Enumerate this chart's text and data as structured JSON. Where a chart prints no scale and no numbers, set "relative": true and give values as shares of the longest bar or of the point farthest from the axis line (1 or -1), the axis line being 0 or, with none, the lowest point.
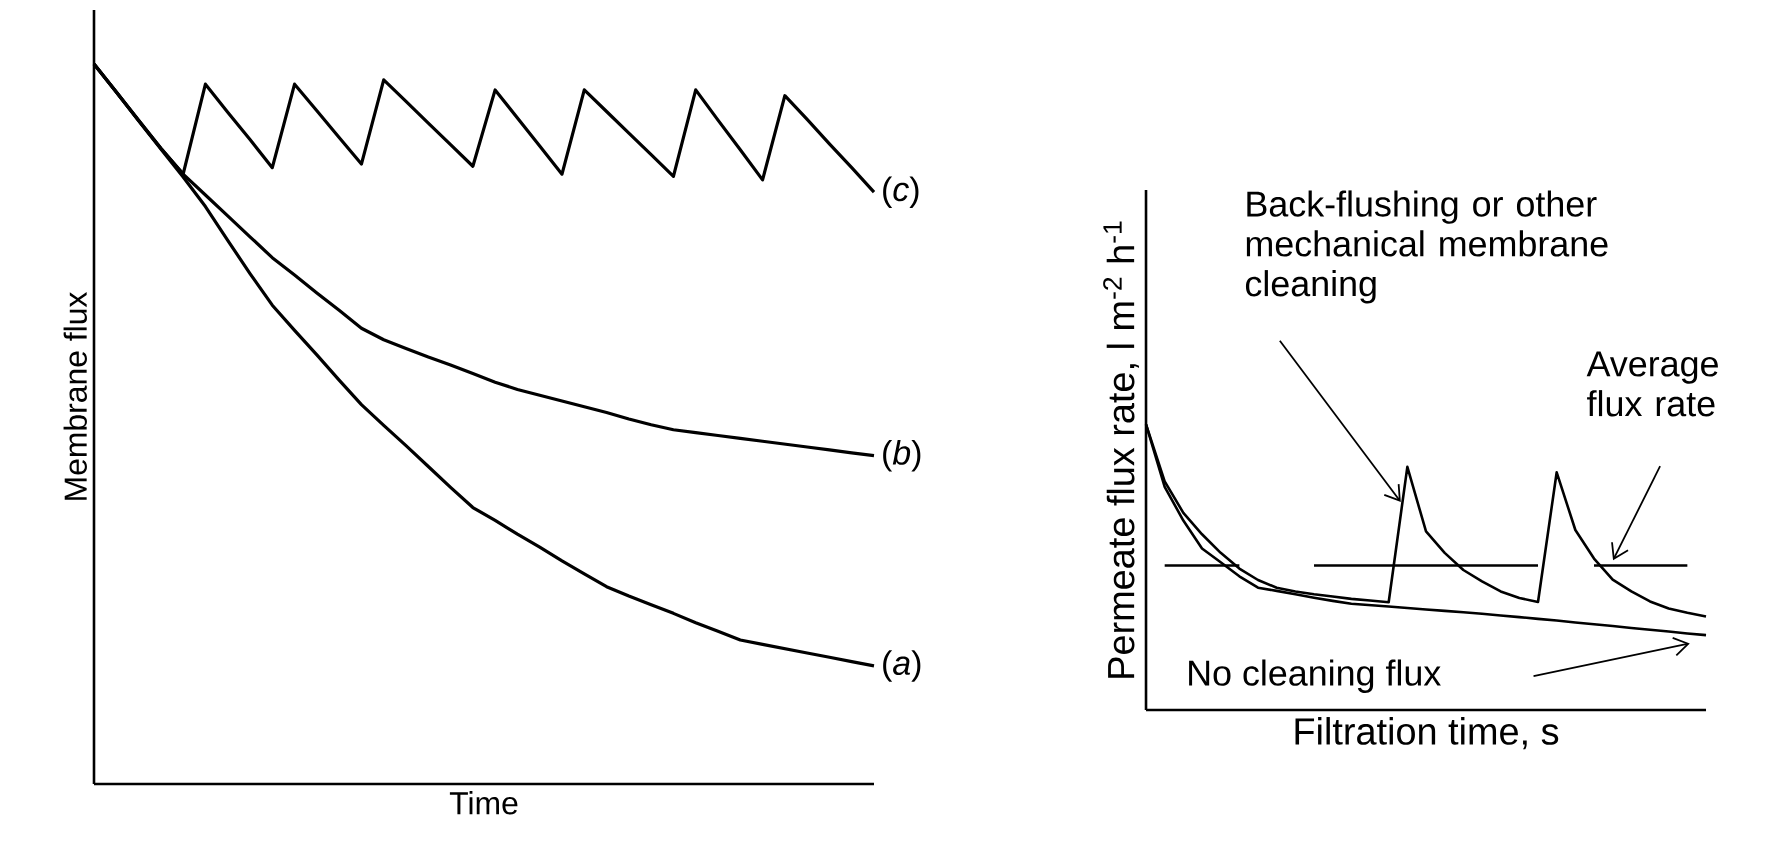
{
  "chart_data": [
    {
      "type": "line",
      "relative": true,
      "xlabel": "Time",
      "ylabel": "Membrane flux",
      "marker": "none",
      "line_style": "solid",
      "categories": [
        null,
        null,
        null,
        null,
        null,
        null,
        null,
        null,
        null,
        null,
        null,
        null,
        null,
        null,
        null,
        null,
        null,
        null,
        null,
        null,
        null,
        null,
        null,
        null,
        null,
        null,
        null,
        null,
        null,
        null,
        null,
        null,
        null,
        null,
        null,
        null
      ],
      "series": [
        {
          "name": "(*a*)",
          "color": "#000000",
          "values": [
            1,
            0.961,
            0.921,
            0.882,
            0.843,
            0.802,
            0.755,
            0.709,
            0.665,
            0.63,
            0.596,
            0.561,
            0.527,
            0.498,
            0.47,
            0.441,
            0.412,
            0.384,
            0.366,
            0.347,
            0.329,
            0.31,
            0.292,
            0.274,
            0.261,
            0.249,
            0.237,
            0.224,
            0.212,
            0.2,
            0.194,
            0.188,
            0.182,
            0.176,
            0.17,
            0.164
          ]
        },
        {
          "name": "(*b*)",
          "color": "#000000",
          "values": [
            1,
            0.961,
            0.922,
            0.883,
            0.847,
            0.818,
            0.789,
            0.76,
            0.731,
            0.707,
            0.682,
            0.658,
            0.633,
            0.617,
            0.605,
            0.593,
            0.582,
            0.57,
            0.558,
            0.548,
            0.54,
            0.532,
            0.524,
            0.516,
            0.507,
            0.499,
            0.492,
            0.488,
            0.484,
            0.48,
            0.476,
            0.472,
            0.468,
            0.464,
            0.46,
            0.456
          ]
        },
        {
          "name": "(*c*)",
          "color": "#000000",
          "values": [
            1,
            0.961,
            0.922,
            0.883,
            0.847,
            0.972,
            0.933,
            0.895,
            0.856,
            0.972,
            0.935,
            0.898,
            0.861,
            0.978,
            0.948,
            0.918,
            0.888,
            0.858,
            0.964,
            0.925,
            0.886,
            0.847,
            0.964,
            0.934,
            0.904,
            0.874,
            0.844,
            0.964,
            0.922,
            0.881,
            0.839,
            0.956,
            0.923,
            0.889,
            0.856,
            0.822
          ]
        }
      ]
    },
    {
      "type": "line",
      "relative": true,
      "xlabel": "Filtration time, s",
      "ylabel": "Permeate flux rate, l m$^{-2}$ h$^{-1}$",
      "marker": "none",
      "line_style": "solid",
      "categories": [
        null,
        null,
        null,
        null,
        null,
        null,
        null,
        null,
        null,
        null,
        null,
        null,
        null,
        null,
        null,
        null,
        null,
        null,
        null,
        null,
        null,
        null,
        null,
        null,
        null,
        null,
        null,
        null,
        null,
        null,
        null
      ],
      "series": [
        {
          "color": "#000000",
          "values": [
            1,
            0.781,
            0.663,
            0.565,
            0.517,
            0.468,
            0.428,
            0.417,
            0.405,
            0.393,
            0.382,
            0.372,
            0.367,
            0.362,
            0.357,
            0.352,
            0.347,
            0.342,
            0.337,
            0.331,
            0.325,
            0.319,
            0.313,
            0.306,
            0.3,
            0.294,
            0.287,
            0.281,
            0.275,
            0.268,
            0.262
          ]
        },
        {
          "color": "#000000",
          "values": [
            1,
            0.8,
            0.69,
            0.615,
            0.55,
            0.495,
            0.455,
            0.428,
            0.415,
            0.405,
            0.397,
            0.389,
            0.383,
            0.377,
            0.851,
            0.625,
            0.55,
            0.49,
            0.45,
            0.415,
            0.392,
            0.378,
            0.832,
            0.63,
            0.53,
            0.456,
            0.415,
            0.38,
            0.355,
            0.34,
            0.327
          ]
        },
        {
          "color": "#000000",
          "values": [
            null,
            0.506,
            0.506,
            0.506,
            0.506,
            0.506,
            null,
            null,
            null,
            0.506,
            0.506,
            0.506,
            0.506,
            0.506,
            0.506,
            0.506,
            0.506,
            0.506,
            0.506,
            0.506,
            0.506,
            0.506,
            null,
            null,
            0.506,
            0.506,
            0.506,
            0.506,
            0.506,
            0.506,
            null
          ]
        }
      ],
      "annotations": [
        "Back-flushing or other mechanical membrane cleaning",
        "Average flux rate",
        "No cleaning flux"
      ]
    }
  ]
}
